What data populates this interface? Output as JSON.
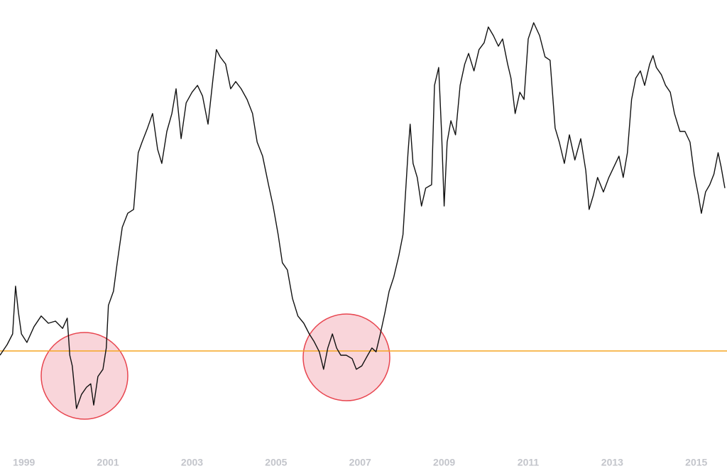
{
  "chart_data": {
    "type": "line",
    "color": "#111111",
    "grid": false,
    "xlim": [
      1998.43,
      2015.68
    ],
    "ylim": [
      0,
      100
    ],
    "xticks": [
      1999,
      2001,
      2003,
      2005,
      2007,
      2009,
      2011,
      2013,
      2015
    ],
    "reference_line": {
      "value": 21,
      "color": "#f5a623"
    },
    "x": [
      1998.43,
      1998.6,
      1998.73,
      1998.8,
      1998.87,
      1998.94,
      1999.07,
      1999.24,
      1999.41,
      1999.58,
      1999.75,
      1999.92,
      2000.03,
      2000.09,
      2000.15,
      2000.25,
      2000.37,
      2000.49,
      2000.59,
      2000.66,
      2000.76,
      2000.88,
      2000.96,
      2001.01,
      2001.13,
      2001.22,
      2001.34,
      2001.47,
      2001.61,
      2001.72,
      2001.81,
      2001.94,
      2002.06,
      2002.18,
      2002.28,
      2002.4,
      2002.52,
      2002.62,
      2002.74,
      2002.86,
      2003.0,
      2003.13,
      2003.25,
      2003.38,
      2003.5,
      2003.58,
      2003.67,
      2003.8,
      2003.92,
      2004.04,
      2004.17,
      2004.31,
      2004.44,
      2004.55,
      2004.68,
      2004.82,
      2004.93,
      2005.05,
      2005.15,
      2005.27,
      2005.39,
      2005.52,
      2005.66,
      2005.79,
      2005.9,
      2006.03,
      2006.13,
      2006.23,
      2006.34,
      2006.44,
      2006.54,
      2006.67,
      2006.81,
      2006.91,
      2007.04,
      2007.18,
      2007.28,
      2007.38,
      2007.48,
      2007.59,
      2007.69,
      2007.8,
      2007.92,
      2008.02,
      2008.14,
      2008.19,
      2008.26,
      2008.36,
      2008.46,
      2008.56,
      2008.7,
      2008.77,
      2008.87,
      2008.94,
      2009.0,
      2009.07,
      2009.16,
      2009.27,
      2009.38,
      2009.49,
      2009.58,
      2009.71,
      2009.83,
      2009.95,
      2010.05,
      2010.17,
      2010.29,
      2010.39,
      2010.51,
      2010.59,
      2010.69,
      2010.8,
      2010.9,
      2011.0,
      2011.13,
      2011.27,
      2011.4,
      2011.52,
      2011.64,
      2011.74,
      2011.86,
      2011.98,
      2012.11,
      2012.25,
      2012.37,
      2012.45,
      2012.55,
      2012.65,
      2012.79,
      2012.92,
      2013.04,
      2013.16,
      2013.26,
      2013.36,
      2013.46,
      2013.56,
      2013.67,
      2013.77,
      2013.89,
      2013.97,
      2014.05,
      2014.17,
      2014.27,
      2014.38,
      2014.48,
      2014.61,
      2014.73,
      2014.85,
      2014.95,
      2015.05,
      2015.12,
      2015.22,
      2015.32,
      2015.42,
      2015.52,
      2015.59,
      2015.68
    ],
    "values": [
      20,
      22.5,
      25,
      36.2,
      30,
      25,
      23,
      26.7,
      29.2,
      27.5,
      28,
      26.3,
      28.7,
      20,
      17.5,
      7.5,
      10.8,
      12.5,
      13.3,
      8.3,
      15,
      16.7,
      21.7,
      31.7,
      35,
      41.7,
      50,
      53.3,
      54.2,
      67.5,
      70,
      73.3,
      76.7,
      68.3,
      65,
      72.5,
      76.7,
      82.5,
      70.8,
      79.2,
      81.7,
      83.3,
      80.8,
      74.2,
      85,
      91.7,
      90,
      88.3,
      82.5,
      84.2,
      82.5,
      80,
      76.7,
      70,
      66.7,
      60,
      55,
      48.3,
      41.7,
      40,
      33.3,
      29.2,
      27.5,
      25,
      23.3,
      20.8,
      16.7,
      21.7,
      25,
      21.7,
      20,
      20,
      19.2,
      16.7,
      17.5,
      20,
      21.7,
      20.8,
      25,
      30,
      35,
      38.3,
      43.3,
      48.3,
      67.5,
      74.2,
      65,
      61.7,
      55,
      59.2,
      60,
      83.3,
      87.5,
      71.7,
      55,
      70,
      75,
      71.7,
      83.3,
      88.3,
      90.8,
      86.7,
      91.7,
      93.3,
      97,
      95,
      92.5,
      94.2,
      88.3,
      85,
      76.7,
      81.7,
      80,
      94.2,
      98,
      95,
      90,
      89.2,
      73.3,
      70,
      65,
      71.7,
      65.8,
      70.8,
      63.3,
      54.2,
      57.5,
      61.7,
      58.3,
      61.7,
      64.2,
      66.7,
      61.7,
      67.5,
      80,
      85,
      86.7,
      83.3,
      88.3,
      90.3,
      87.5,
      85.8,
      83.3,
      81.7,
      76.7,
      72.5,
      72.5,
      70,
      62.5,
      57.5,
      53.3,
      58.3,
      60,
      62.5,
      67.5,
      64.2,
      59.2
    ]
  }
}
